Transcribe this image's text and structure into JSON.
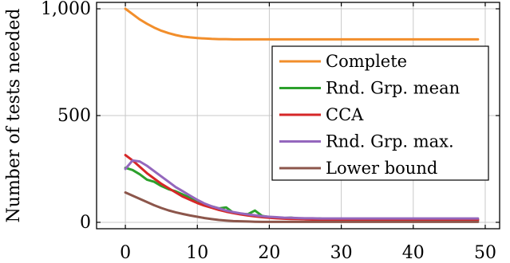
{
  "chart_data": {
    "type": "line",
    "title": "",
    "xlabel": "",
    "ylabel": "Number of tests needed",
    "xlim": [
      -4,
      52
    ],
    "ylim": [
      -30,
      1030
    ],
    "xticks": [
      0,
      10,
      20,
      30,
      40,
      50
    ],
    "xtick_labels": [
      "0",
      "10",
      "20",
      "30",
      "40",
      "50"
    ],
    "yticks": [
      0,
      500,
      1000
    ],
    "ytick_labels": [
      "0",
      "500",
      "1,000"
    ],
    "grid": true,
    "legend_position": "center-right",
    "series": [
      {
        "name": "Complete",
        "color": "#f28e2b",
        "x": [
          0,
          1,
          2,
          3,
          4,
          5,
          6,
          7,
          8,
          9,
          10,
          11,
          12,
          13,
          14,
          15,
          16,
          17,
          18,
          19,
          20,
          21,
          22,
          23,
          24,
          25,
          26,
          27,
          28,
          29,
          30,
          31,
          32,
          33,
          34,
          35,
          36,
          37,
          38,
          39,
          40,
          41,
          42,
          43,
          44,
          45,
          46,
          47,
          48,
          49
        ],
        "y": [
          1000,
          975,
          950,
          930,
          912,
          897,
          886,
          877,
          870,
          866,
          863,
          861,
          859,
          858,
          858,
          857,
          857,
          857,
          857,
          857,
          857,
          857,
          857,
          857,
          857,
          857,
          857,
          857,
          857,
          857,
          857,
          857,
          857,
          857,
          857,
          857,
          857,
          857,
          857,
          857,
          857,
          857,
          857,
          857,
          857,
          857,
          857,
          857,
          857,
          857
        ]
      },
      {
        "name": "Rnd. Grp. mean",
        "color": "#2ca02c",
        "x": [
          0,
          1,
          2,
          3,
          4,
          5,
          6,
          7,
          8,
          9,
          10,
          11,
          12,
          13,
          14,
          15,
          16,
          17,
          18,
          19,
          20,
          21,
          22,
          23,
          24,
          25,
          26,
          27,
          28,
          29,
          30,
          31,
          32,
          33,
          34,
          35,
          36,
          37,
          38,
          39,
          40,
          41,
          42,
          43,
          44,
          45,
          46,
          47,
          48,
          49
        ],
        "y": [
          255,
          245,
          225,
          200,
          190,
          170,
          155,
          145,
          130,
          115,
          100,
          85,
          75,
          65,
          70,
          45,
          40,
          38,
          55,
          30,
          25,
          22,
          20,
          22,
          18,
          16,
          15,
          18,
          14,
          13,
          16,
          12,
          12,
          14,
          11,
          11,
          11,
          11,
          11,
          11,
          11,
          11,
          11,
          11,
          11,
          11,
          11,
          11,
          11,
          11
        ]
      },
      {
        "name": "CCA",
        "color": "#d62728",
        "x": [
          0,
          1,
          2,
          3,
          4,
          5,
          6,
          7,
          8,
          9,
          10,
          11,
          12,
          13,
          14,
          15,
          16,
          17,
          18,
          19,
          20,
          21,
          22,
          23,
          24,
          25,
          26,
          27,
          28,
          29,
          30,
          31,
          32,
          33,
          34,
          35,
          36,
          37,
          38,
          39,
          40,
          41,
          42,
          43,
          44,
          45,
          46,
          47,
          48,
          49
        ],
        "y": [
          315,
          290,
          260,
          230,
          205,
          180,
          160,
          140,
          120,
          105,
          90,
          78,
          68,
          58,
          50,
          43,
          37,
          32,
          28,
          24,
          21,
          19,
          17,
          16,
          15,
          14,
          13,
          13,
          12,
          12,
          12,
          11,
          11,
          11,
          11,
          11,
          11,
          11,
          11,
          11,
          11,
          11,
          11,
          11,
          11,
          11,
          11,
          11,
          11,
          11
        ]
      },
      {
        "name": "Rnd. Grp. max.",
        "color": "#9467bd",
        "x": [
          0,
          1,
          2,
          3,
          4,
          5,
          6,
          7,
          8,
          9,
          10,
          11,
          12,
          13,
          14,
          15,
          16,
          17,
          18,
          19,
          20,
          21,
          22,
          23,
          24,
          25,
          26,
          27,
          28,
          29,
          30,
          31,
          32,
          33,
          34,
          35,
          36,
          37,
          38,
          39,
          40,
          41,
          42,
          43,
          44,
          45,
          46,
          47,
          48,
          49
        ],
        "y": [
          250,
          290,
          285,
          265,
          240,
          215,
          190,
          165,
          145,
          125,
          105,
          88,
          75,
          65,
          55,
          48,
          42,
          37,
          33,
          29,
          26,
          24,
          22,
          21,
          20,
          19,
          19,
          18,
          18,
          18,
          18,
          18,
          18,
          18,
          18,
          18,
          18,
          18,
          18,
          18,
          18,
          18,
          18,
          18,
          18,
          18,
          18,
          18,
          18,
          18
        ]
      },
      {
        "name": "Lower bound",
        "color": "#8c564b",
        "x": [
          0,
          1,
          2,
          3,
          4,
          5,
          6,
          7,
          8,
          9,
          10,
          11,
          12,
          13,
          14,
          15,
          16,
          17,
          18,
          19,
          20,
          21,
          22,
          23,
          24,
          25,
          26,
          27,
          28,
          29,
          30,
          31,
          32,
          33,
          34,
          35,
          36,
          37,
          38,
          39,
          40,
          41,
          42,
          43,
          44,
          45,
          46,
          47,
          48,
          49
        ],
        "y": [
          140,
          125,
          110,
          95,
          80,
          67,
          56,
          47,
          39,
          32,
          26,
          20,
          15,
          11,
          8,
          6,
          5,
          4,
          3,
          2,
          2,
          2,
          2,
          2,
          2,
          2,
          2,
          2,
          2,
          2,
          2,
          2,
          2,
          2,
          2,
          2,
          2,
          2,
          2,
          2,
          2,
          2,
          2,
          2,
          2,
          2,
          2,
          2,
          2,
          2
        ]
      }
    ]
  }
}
